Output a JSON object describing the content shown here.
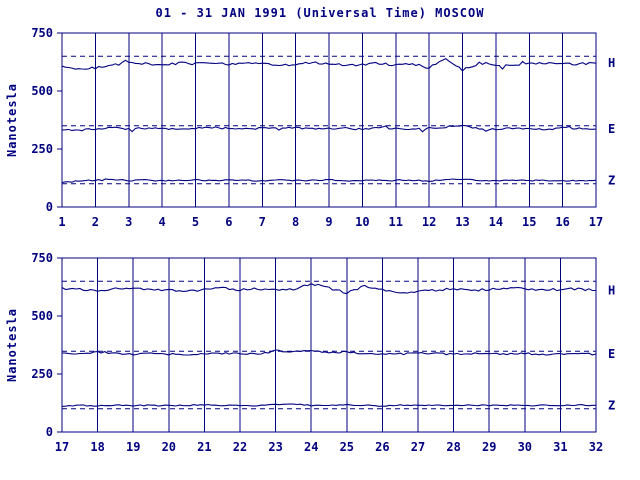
{
  "title": "01 - 31 JAN 1991 (Universal Time) MOSCOW",
  "colors": {
    "ink": "#000080",
    "background": "#ffffff"
  },
  "chart_data": [
    {
      "type": "line",
      "title": "01 - 31 JAN 1991 (Universal Time) MOSCOW",
      "ylabel": "Nanotesla",
      "ylim": [
        0,
        750
      ],
      "yticks": [
        0,
        250,
        500,
        750
      ],
      "xlim": [
        1,
        17
      ],
      "xticks": [
        1,
        2,
        3,
        4,
        5,
        6,
        7,
        8,
        9,
        10,
        11,
        12,
        13,
        14,
        15,
        16,
        17
      ],
      "grid": "vertical",
      "legend_position": "right",
      "x_step": 0.5,
      "series": [
        {
          "name": "H",
          "label": "H",
          "ref_line": 650,
          "noise": 5,
          "values": [
            610,
            595,
            600,
            615,
            625,
            618,
            612,
            620,
            618,
            622,
            615,
            620,
            618,
            612,
            615,
            622,
            618,
            610,
            615,
            620,
            612,
            618,
            600,
            640,
            590,
            620,
            615,
            610,
            618,
            622,
            615,
            618,
            620
          ]
        },
        {
          "name": "E",
          "label": "E",
          "ref_line": 350,
          "noise": 4,
          "values": [
            335,
            330,
            338,
            342,
            336,
            340,
            338,
            335,
            340,
            342,
            338,
            336,
            340,
            338,
            342,
            336,
            338,
            340,
            335,
            342,
            338,
            336,
            340,
            345,
            350,
            338,
            336,
            340,
            338,
            335,
            340,
            338,
            336
          ]
        },
        {
          "name": "Z",
          "label": "Z",
          "ref_line": 100,
          "noise": 2.5,
          "values": [
            105,
            112,
            115,
            118,
            114,
            116,
            113,
            115,
            117,
            114,
            116,
            115,
            113,
            116,
            114,
            115,
            117,
            113,
            115,
            116,
            114,
            115,
            112,
            118,
            120,
            115,
            113,
            116,
            114,
            115,
            113,
            114,
            115
          ]
        }
      ]
    },
    {
      "type": "line",
      "title": "01 - 31 JAN 1991 (Universal Time) MOSCOW",
      "ylabel": "Nanotesla",
      "ylim": [
        0,
        750
      ],
      "yticks": [
        0,
        250,
        500,
        750
      ],
      "xlim": [
        17,
        32
      ],
      "xticks": [
        17,
        18,
        19,
        20,
        21,
        22,
        23,
        24,
        25,
        26,
        27,
        28,
        29,
        30,
        31,
        32
      ],
      "grid": "vertical",
      "legend_position": "right",
      "x_step": 0.5,
      "series": [
        {
          "name": "H",
          "label": "H",
          "ref_line": 650,
          "noise": 5,
          "values": [
            620,
            615,
            610,
            618,
            622,
            615,
            610,
            605,
            615,
            620,
            612,
            618,
            610,
            615,
            640,
            620,
            600,
            630,
            615,
            595,
            605,
            612,
            618,
            610,
            615,
            620,
            618,
            612,
            615,
            618,
            610
          ]
        },
        {
          "name": "E",
          "label": "E",
          "ref_line": 348,
          "noise": 4,
          "values": [
            338,
            335,
            345,
            340,
            336,
            338,
            335,
            332,
            336,
            340,
            338,
            335,
            350,
            345,
            355,
            340,
            345,
            335,
            338,
            336,
            340,
            338,
            335,
            338,
            340,
            336,
            338,
            335,
            336,
            338,
            336
          ]
        },
        {
          "name": "Z",
          "label": "Z",
          "ref_line": 100,
          "noise": 2.5,
          "values": [
            112,
            115,
            113,
            116,
            114,
            115,
            113,
            115,
            117,
            114,
            116,
            113,
            118,
            120,
            115,
            116,
            114,
            115,
            113,
            116,
            114,
            115,
            113,
            116,
            114,
            115,
            113,
            115,
            114,
            116,
            115
          ]
        }
      ]
    }
  ]
}
